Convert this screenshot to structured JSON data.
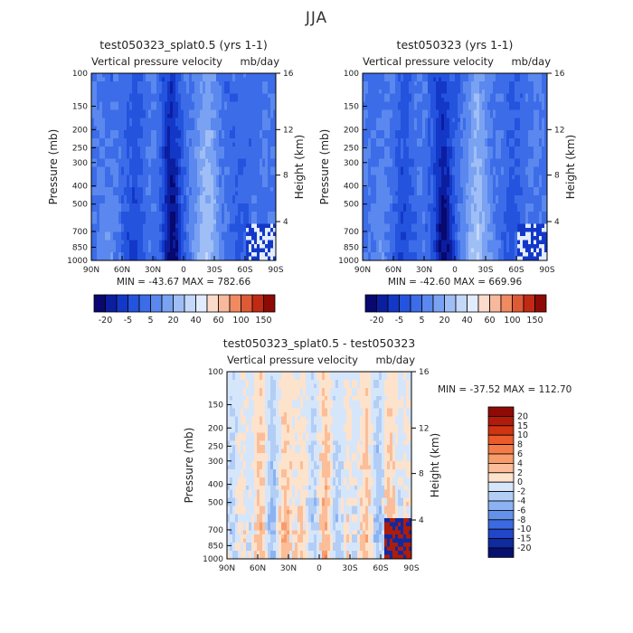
{
  "page": {
    "title": "JJA"
  },
  "chart_data": [
    {
      "type": "heatmap",
      "title": "test050323_splat0.5 (yrs 1-1)",
      "subtitle_left": "Vertical pressure velocity",
      "subtitle_right": "mb/day",
      "xlabel": "",
      "ylabel": "Pressure (mb)",
      "ylabel_right": "Height (km)",
      "x_ticks": [
        "90N",
        "60N",
        "30N",
        "0",
        "30S",
        "60S",
        "90S"
      ],
      "y_ticks": [
        100,
        150,
        200,
        250,
        300,
        400,
        500,
        700,
        850,
        1000
      ],
      "y_ticks_right": [
        16,
        12,
        8,
        4
      ],
      "ylim": [
        1000,
        100
      ],
      "y_scale": "log",
      "stats": "MIN = -43.67   MAX = 782.66",
      "colorbar_labels": [
        "-20",
        "-5",
        "5",
        "20",
        "40",
        "60",
        "100",
        "150"
      ],
      "colorbar_orientation": "horizontal"
    },
    {
      "type": "heatmap",
      "title": "test050323 (yrs 1-1)",
      "subtitle_left": "Vertical pressure velocity",
      "subtitle_right": "mb/day",
      "xlabel": "",
      "ylabel": "Pressure (mb)",
      "ylabel_right": "Height (km)",
      "x_ticks": [
        "90N",
        "60N",
        "30N",
        "0",
        "30S",
        "60S",
        "90S"
      ],
      "y_ticks": [
        100,
        150,
        200,
        250,
        300,
        400,
        500,
        700,
        850,
        1000
      ],
      "y_ticks_right": [
        16,
        12,
        8,
        4
      ],
      "ylim": [
        1000,
        100
      ],
      "y_scale": "log",
      "stats": "MIN = -42.60   MAX = 669.96",
      "colorbar_labels": [
        "-20",
        "-5",
        "5",
        "20",
        "40",
        "60",
        "100",
        "150"
      ],
      "colorbar_orientation": "horizontal"
    },
    {
      "type": "heatmap",
      "title": "test050323_splat0.5 - test050323",
      "subtitle_left": "Vertical pressure velocity",
      "subtitle_right": "mb/day",
      "xlabel": "",
      "ylabel": "Pressure (mb)",
      "ylabel_right": "Height (km)",
      "x_ticks": [
        "90N",
        "60N",
        "30N",
        "0",
        "30S",
        "60S",
        "90S"
      ],
      "y_ticks": [
        100,
        150,
        200,
        250,
        300,
        400,
        500,
        700,
        850,
        1000
      ],
      "y_ticks_right": [
        16,
        12,
        8,
        4
      ],
      "ylim": [
        1000,
        100
      ],
      "y_scale": "log",
      "stats": "MIN = -37.52   MAX = 112.70",
      "colorbar_labels": [
        "20",
        "15",
        "10",
        "8",
        "6",
        "4",
        "2",
        "0",
        "-2",
        "-4",
        "-6",
        "-8",
        "-10",
        "-15",
        "-20"
      ],
      "colorbar_orientation": "vertical"
    }
  ],
  "colors": {
    "field_scale": [
      "#08086e",
      "#0c1ea0",
      "#1338c8",
      "#2454de",
      "#3c6ce8",
      "#5a88ee",
      "#7aa2f2",
      "#a0bef6",
      "#c4d8fa",
      "#e2ecfc",
      "#fbdccb",
      "#f7b89c",
      "#f08a60",
      "#de5a36",
      "#c02a14",
      "#8e0a06"
    ],
    "diff_scale": [
      "#8e0a06",
      "#b01c0a",
      "#d03412",
      "#ea5a2a",
      "#f47c48",
      "#f89c6c",
      "#fbbe98",
      "#fde2cc",
      "#d6e6fa",
      "#b2cef6",
      "#8cb2f2",
      "#6492ea",
      "#3c6ae0",
      "#2246c8",
      "#102aa0",
      "#06106e"
    ]
  }
}
